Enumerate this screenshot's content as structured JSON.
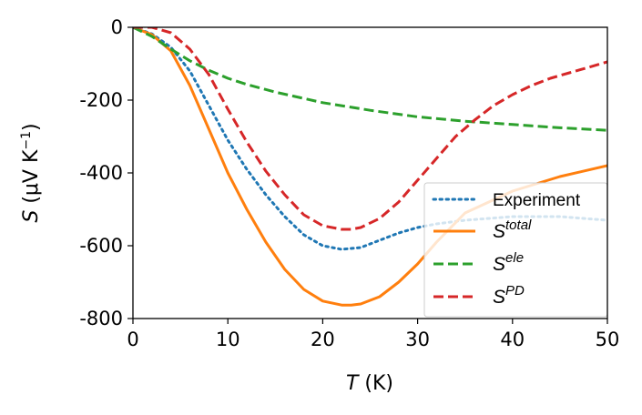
{
  "chart_data": {
    "type": "line",
    "title": "",
    "xlabel": {
      "symbol": "T",
      "unit": " (K)"
    },
    "ylabel": {
      "symbol": "S",
      "unit": " (μV K",
      "exponent": "−1",
      "close": ")"
    },
    "xlim": [
      0,
      50
    ],
    "ylim": [
      -800,
      0
    ],
    "xticks": [
      0,
      10,
      20,
      30,
      40,
      50
    ],
    "yticks": [
      0,
      -200,
      -400,
      -600,
      -800
    ],
    "xtick_labels": [
      "0",
      "10",
      "20",
      "30",
      "40",
      "50"
    ],
    "ytick_labels": [
      "0",
      "-200",
      "-400",
      "-600",
      "-800"
    ],
    "grid": false,
    "legend_position": "lower-right",
    "series": [
      {
        "name": "Experiment",
        "legend": {
          "base": "Experiment",
          "sup": ""
        },
        "color": "#1f77b4",
        "style": "dotted",
        "x": [
          0,
          2,
          4,
          6,
          8,
          10,
          12,
          14,
          16,
          18,
          20,
          22,
          24,
          26,
          28,
          30,
          32,
          35,
          40,
          45,
          50
        ],
        "y": [
          0,
          -18,
          -55,
          -120,
          -215,
          -310,
          -390,
          -460,
          -520,
          -570,
          -600,
          -610,
          -605,
          -585,
          -565,
          -550,
          -540,
          -530,
          -520,
          -520,
          -530
        ]
      },
      {
        "name": "S^total",
        "legend": {
          "base": "S",
          "sup": "total"
        },
        "color": "#ff7f0e",
        "style": "solid",
        "x": [
          0,
          2,
          4,
          6,
          8,
          10,
          12,
          14,
          16,
          18,
          20,
          22,
          23,
          24,
          26,
          28,
          30,
          32,
          35,
          40,
          45,
          50
        ],
        "y": [
          0,
          -20,
          -65,
          -160,
          -280,
          -400,
          -500,
          -590,
          -665,
          -720,
          -752,
          -763,
          -763,
          -760,
          -740,
          -700,
          -650,
          -590,
          -510,
          -450,
          -410,
          -380
        ]
      },
      {
        "name": "S^ele",
        "legend": {
          "base": "S",
          "sup": "ele"
        },
        "color": "#2ca02c",
        "style": "dashed",
        "x": [
          0,
          2,
          4,
          6,
          8,
          10,
          12,
          15,
          20,
          25,
          30,
          35,
          40,
          45,
          50
        ],
        "y": [
          0,
          -25,
          -60,
          -92,
          -118,
          -140,
          -157,
          -178,
          -207,
          -228,
          -246,
          -258,
          -267,
          -276,
          -283
        ]
      },
      {
        "name": "S^PD",
        "legend": {
          "base": "S",
          "sup": "PD"
        },
        "color": "#d62728",
        "style": "dashed",
        "x": [
          0,
          2,
          4,
          6,
          8,
          10,
          12,
          14,
          16,
          18,
          20,
          22,
          23,
          24,
          26,
          28,
          30,
          32,
          34,
          36,
          38,
          40,
          42,
          44,
          46,
          48,
          50
        ],
        "y": [
          0,
          0,
          -15,
          -60,
          -130,
          -225,
          -315,
          -395,
          -460,
          -515,
          -545,
          -555,
          -555,
          -550,
          -525,
          -480,
          -420,
          -360,
          -300,
          -255,
          -215,
          -185,
          -160,
          -140,
          -125,
          -110,
          -95
        ]
      }
    ]
  }
}
